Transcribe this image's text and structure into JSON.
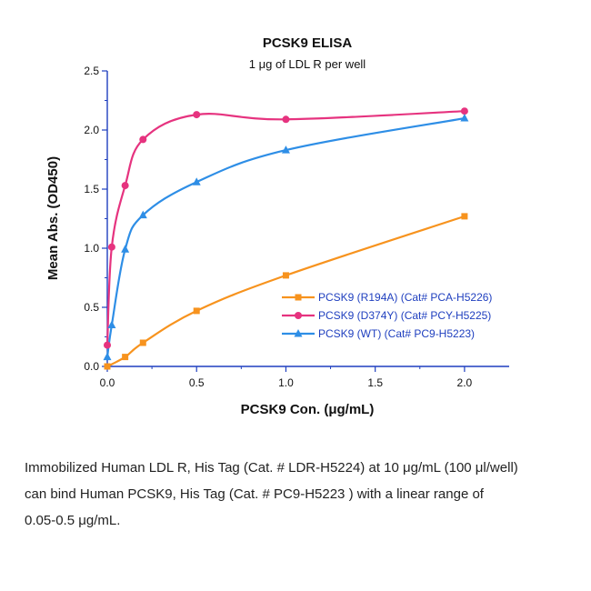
{
  "chart_data": {
    "type": "line",
    "title": "PCSK9 ELISA",
    "subtitle": "1 μg of LDL R per well",
    "xlabel": "PCSK9 Con. (μg/mL)",
    "ylabel": "Mean Abs. (OD450)",
    "xlim": [
      0,
      2.25
    ],
    "ylim": [
      0,
      2.5
    ],
    "xticks": [
      "0.0",
      "0.5",
      "1.0",
      "1.5",
      "2.0"
    ],
    "yticks": [
      "0.0",
      "0.5",
      "1.0",
      "1.5",
      "2.0",
      "2.5"
    ],
    "legend_position": "lower-right",
    "series": [
      {
        "name": "PCSK9 (R194A) (Cat# PCA-H5226)",
        "color": "#f7931e",
        "marker": "square",
        "x": [
          0.0,
          0.1,
          0.2,
          0.5,
          1.0,
          2.0
        ],
        "y": [
          0.0,
          0.08,
          0.2,
          0.47,
          0.77,
          1.27
        ]
      },
      {
        "name": "PCSK9 (D374Y) (Cat# PCY-H5225)",
        "color": "#e6337f",
        "marker": "circle",
        "x": [
          0.0,
          0.025,
          0.1,
          0.2,
          0.5,
          1.0,
          2.0
        ],
        "y": [
          0.18,
          1.01,
          1.53,
          1.92,
          2.13,
          2.09,
          2.16
        ]
      },
      {
        "name": "PCSK9 (WT) (Cat# PC9-H5223)",
        "color": "#2e8ee6",
        "marker": "triangle",
        "x": [
          0.0,
          0.025,
          0.1,
          0.2,
          0.5,
          1.0,
          2.0
        ],
        "y": [
          0.08,
          0.35,
          0.99,
          1.28,
          1.56,
          1.83,
          2.1
        ]
      }
    ]
  },
  "caption": {
    "line1": "Immobilized Human LDL R, His Tag (Cat. # LDR-H5224) at 10 μg/mL (100 μl/well)",
    "line2": "can bind Human PCSK9, His Tag (Cat. # PC9-H5223 ) with a linear range of",
    "line3": "0.05-0.5 μg/mL."
  }
}
